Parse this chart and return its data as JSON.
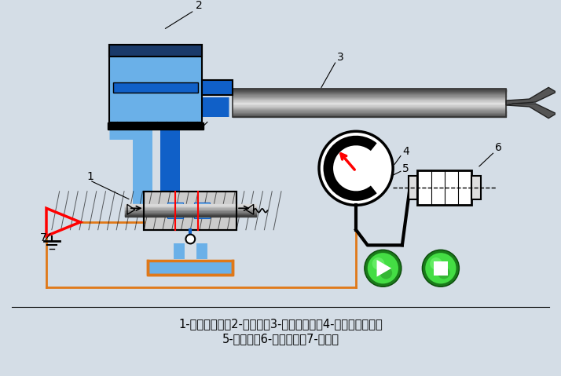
{
  "bg_color": "#d4dde6",
  "title_line1": "1-电液伺服阀；2-液压缸；3-机械手手臂；4-齿轮齿条机构；",
  "title_line2": "5-电位器；6-步进电机；7-放大器",
  "blue_light": "#6ab0e8",
  "blue_dark": "#1060c8",
  "orange_color": "#e07818",
  "steel_dark": "#404040",
  "steel_mid": "#909090",
  "steel_light": "#d0d0d0"
}
